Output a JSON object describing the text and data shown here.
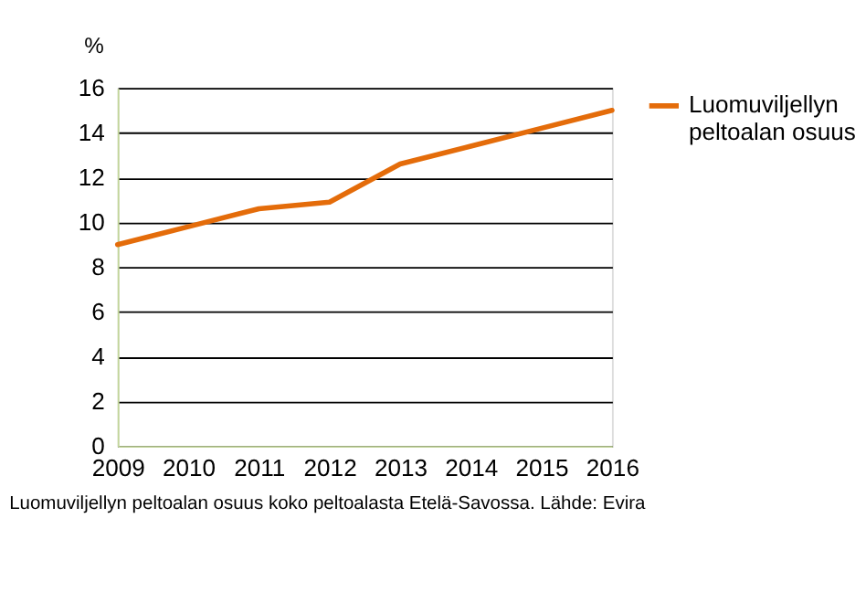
{
  "chart_data": {
    "type": "line",
    "categories": [
      "2009",
      "2010",
      "2011",
      "2012",
      "2013",
      "2014",
      "2015",
      "2016"
    ],
    "series": [
      {
        "name": "Luomuviljellyn peltoalan osuus",
        "color": "#e46c0a",
        "values": [
          9.0,
          9.8,
          10.6,
          10.9,
          12.6,
          13.4,
          14.2,
          15.0
        ]
      }
    ],
    "ylabel": "%",
    "ylim": [
      0,
      16
    ],
    "yticks": [
      0,
      2,
      4,
      6,
      8,
      10,
      12,
      14,
      16
    ],
    "grid": "y",
    "legend": "right",
    "marker": "none",
    "line_style": "solid",
    "annotations": [
      "Luomuviljellyn peltoalan osuus koko peltoalasta Etelä-Savossa.  Lähde: Evira"
    ]
  }
}
